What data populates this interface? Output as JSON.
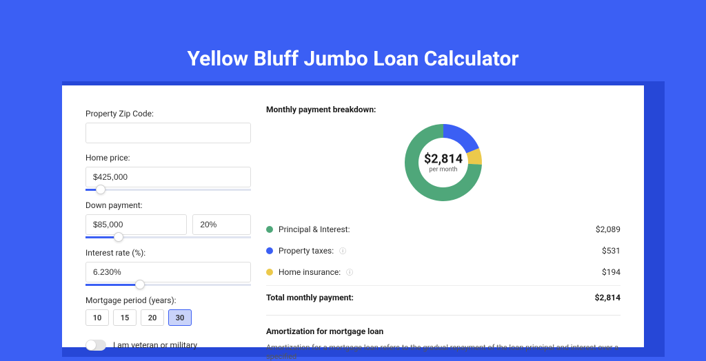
{
  "colors": {
    "page_bg": "#3b5ff4",
    "shadow_bg": "#2647d7",
    "card_bg": "#ffffff",
    "title_color": "#ffffff",
    "series_pi": "#4fa77a",
    "series_tax": "#3b5ff4",
    "series_ins": "#ecc94b"
  },
  "page_title": "Yellow Bluff Jumbo Loan Calculator",
  "form": {
    "zip": {
      "label": "Property Zip Code:",
      "value": ""
    },
    "home_price": {
      "label": "Home price:",
      "value": "$425,000",
      "slider_pct": 9
    },
    "down_payment": {
      "label": "Down payment:",
      "value": "$85,000",
      "pct": "20%",
      "slider_pct": 20
    },
    "interest": {
      "label": "Interest rate (%):",
      "value": "6.230%",
      "slider_pct": 33
    },
    "period": {
      "label": "Mortgage period (years):",
      "options": [
        "10",
        "15",
        "20",
        "30"
      ],
      "selected": "30"
    },
    "veteran": {
      "label": "I am veteran or military",
      "on": false
    }
  },
  "breakdown": {
    "title": "Monthly payment breakdown:",
    "center_amount": "$2,814",
    "center_sub": "per month",
    "items": [
      {
        "label": "Principal & Interest:",
        "value": "$2,089",
        "color": "#4fa77a",
        "info": false,
        "pct": 74.2
      },
      {
        "label": "Property taxes:",
        "value": "$531",
        "color": "#3b5ff4",
        "info": true,
        "pct": 18.9
      },
      {
        "label": "Home insurance:",
        "value": "$194",
        "color": "#ecc94b",
        "info": true,
        "pct": 6.9
      }
    ],
    "total_label": "Total monthly payment:",
    "total_value": "$2,814"
  },
  "amort": {
    "title": "Amortization for mortgage loan",
    "text": "Amortization for a mortgage loan refers to the gradual repayment of the loan principal and interest over a specified"
  }
}
